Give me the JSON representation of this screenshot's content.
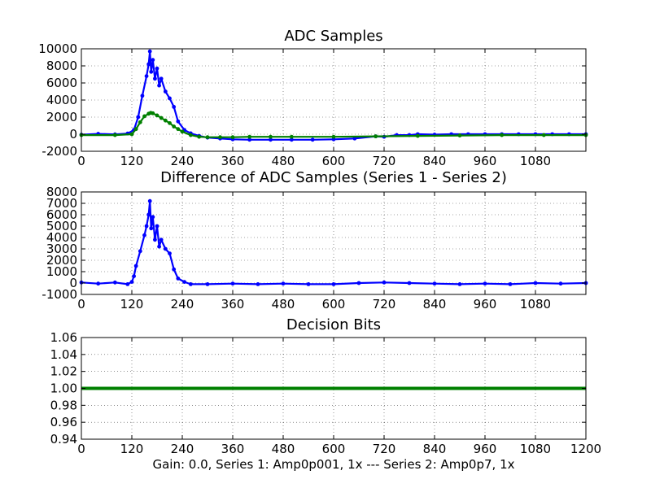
{
  "caption": "Gain: 0.0, Series 1: Amp0p001, 1x --- Series 2: Amp0p7, 1x",
  "chart_data": [
    {
      "type": "line",
      "title": "ADC Samples",
      "xlabel": "",
      "ylabel": "",
      "xlim": [
        0,
        1200
      ],
      "ylim": [
        -2000,
        10000
      ],
      "xticks": [
        0,
        120,
        240,
        360,
        480,
        600,
        720,
        840,
        960,
        1080
      ],
      "yticks": [
        -2000,
        0,
        2000,
        4000,
        6000,
        8000,
        10000
      ],
      "grid": true,
      "series": [
        {
          "color": "#0000ff",
          "marker": "dot",
          "x": [
            0,
            40,
            80,
            110,
            125,
            135,
            145,
            155,
            160,
            163,
            166,
            170,
            175,
            180,
            185,
            190,
            200,
            210,
            220,
            230,
            245,
            260,
            280,
            300,
            330,
            360,
            400,
            450,
            500,
            550,
            600,
            650,
            700,
            720,
            750,
            780,
            800,
            840,
            880,
            920,
            960,
            1000,
            1040,
            1080,
            1120,
            1160,
            1200
          ],
          "y": [
            -60,
            40,
            -20,
            80,
            500,
            2000,
            4500,
            6800,
            8200,
            9700,
            7300,
            8700,
            6500,
            7700,
            5700,
            6500,
            5000,
            4200,
            3200,
            1500,
            500,
            100,
            -200,
            -400,
            -500,
            -600,
            -650,
            -650,
            -650,
            -650,
            -600,
            -500,
            -250,
            -300,
            -100,
            -100,
            0,
            -50,
            0,
            0,
            0,
            0,
            0,
            0,
            0,
            0,
            0
          ]
        },
        {
          "color": "#008000",
          "marker": "dot",
          "x": [
            0,
            80,
            120,
            130,
            140,
            150,
            160,
            165,
            170,
            180,
            190,
            200,
            210,
            220,
            230,
            240,
            260,
            280,
            300,
            330,
            360,
            400,
            450,
            500,
            600,
            700,
            800,
            900,
            1000,
            1100,
            1200
          ],
          "y": [
            -100,
            -100,
            0,
            600,
            1400,
            2100,
            2400,
            2500,
            2450,
            2200,
            1900,
            1600,
            1300,
            900,
            600,
            300,
            -100,
            -300,
            -350,
            -350,
            -350,
            -300,
            -300,
            -300,
            -300,
            -250,
            -200,
            -150,
            -100,
            -100,
            -100
          ]
        }
      ]
    },
    {
      "type": "line",
      "title": "Difference of ADC Samples (Series 1 - Series 2)",
      "xlabel": "",
      "ylabel": "",
      "xlim": [
        0,
        1200
      ],
      "ylim": [
        -1000,
        8000
      ],
      "xticks": [
        0,
        120,
        240,
        360,
        480,
        600,
        720,
        840,
        960,
        1080
      ],
      "yticks": [
        -1000,
        0,
        1000,
        2000,
        3000,
        4000,
        5000,
        6000,
        7000,
        8000
      ],
      "grid": true,
      "series": [
        {
          "color": "#0000ff",
          "marker": "dot",
          "x": [
            0,
            40,
            80,
            110,
            120,
            125,
            130,
            140,
            150,
            155,
            160,
            163,
            166,
            170,
            175,
            180,
            185,
            190,
            200,
            210,
            220,
            230,
            245,
            260,
            300,
            360,
            420,
            480,
            540,
            600,
            660,
            720,
            780,
            840,
            900,
            960,
            1020,
            1080,
            1140,
            1200
          ],
          "y": [
            50,
            -50,
            50,
            -100,
            100,
            600,
            1500,
            2800,
            4200,
            5000,
            6000,
            7200,
            4800,
            5800,
            3800,
            5000,
            3200,
            3800,
            3000,
            2600,
            1200,
            400,
            100,
            -100,
            -100,
            -50,
            -100,
            -50,
            -100,
            -100,
            0,
            50,
            0,
            -50,
            -100,
            -50,
            -100,
            0,
            -50,
            0
          ]
        }
      ]
    },
    {
      "type": "line",
      "title": "Decision Bits",
      "xlabel": "",
      "ylabel": "",
      "xlim": [
        0,
        1200
      ],
      "ylim": [
        0.94,
        1.06
      ],
      "xticks": [
        0,
        120,
        240,
        360,
        480,
        600,
        720,
        840,
        960,
        1080,
        1200
      ],
      "yticks": [
        0.94,
        0.96,
        0.98,
        1.0,
        1.02,
        1.04,
        1.06
      ],
      "grid": true,
      "series": [
        {
          "color": "#008000",
          "marker": "dot",
          "x": [
            0,
            1200
          ],
          "y": [
            1.0,
            1.0
          ]
        }
      ]
    }
  ]
}
